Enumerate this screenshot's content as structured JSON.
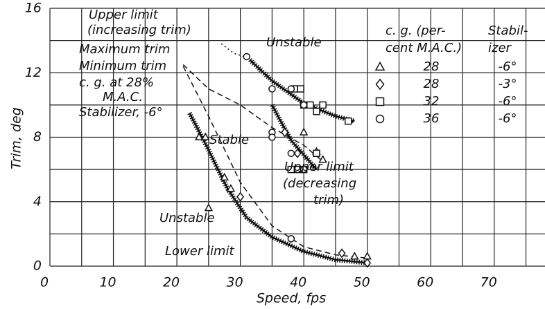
{
  "chart_data": {
    "type": "scatter",
    "xlabel": "Speed, fps",
    "ylabel": "Trim, deg",
    "xlim": [
      0,
      78
    ],
    "ylim": [
      0,
      16
    ],
    "xticks": [
      0,
      10,
      20,
      30,
      40,
      50,
      60,
      70
    ],
    "yticks": [
      0,
      4,
      8,
      12,
      16
    ],
    "xgrid": [
      0,
      5,
      10,
      15,
      20,
      25,
      30,
      35,
      40,
      45,
      50,
      55,
      60,
      65,
      70,
      75
    ],
    "ygrid": [
      0,
      2,
      4,
      6,
      8,
      10,
      12,
      14,
      16
    ],
    "grid": true,
    "color": "#111111",
    "legend_header": [
      "c. g. (per-",
      "cent M.A.C.)",
      "Stabil-",
      "izer"
    ],
    "series": [
      {
        "cg": "28",
        "stabilizer": "-6°",
        "marker": "triangle",
        "x": [
          23.5,
          24.5,
          25,
          27.5,
          28.5,
          40,
          43,
          42,
          48,
          50
        ],
        "y": [
          8,
          8,
          3.6,
          5.5,
          4.8,
          8.3,
          6.6,
          7.1,
          0.6,
          0.6
        ]
      },
      {
        "cg": "28",
        "stabilizer": "-3°",
        "marker": "diamond",
        "x": [
          30,
          37,
          39,
          46,
          50
        ],
        "y": [
          4.3,
          8.3,
          7,
          0.8,
          0.2
        ]
      },
      {
        "cg": "32",
        "stabilizer": "-6°",
        "marker": "square",
        "x": [
          38.5,
          39.5,
          40,
          41,
          42,
          43,
          47,
          38,
          39,
          40,
          42
        ],
        "y": [
          11,
          11,
          10,
          10,
          9.6,
          10,
          9,
          6,
          6,
          6,
          7
        ]
      },
      {
        "cg": "36",
        "stabilizer": "-6°",
        "marker": "circle",
        "x": [
          31,
          35,
          35,
          35,
          38,
          38,
          40,
          39,
          38,
          40
        ],
        "y": [
          13,
          11,
          8.3,
          8,
          11,
          7,
          10,
          6,
          1.7,
          6
        ]
      }
    ],
    "lines": [
      {
        "style": "hatched",
        "x": [
          31.5,
          35,
          40,
          45,
          48
        ],
        "y": [
          12.8,
          11.5,
          10.1,
          9.3,
          9
        ]
      },
      {
        "style": "hatched",
        "x": [
          35,
          38,
          42
        ],
        "y": [
          10,
          7.8,
          6
        ]
      },
      {
        "style": "hatched",
        "x": [
          22,
          25,
          28,
          31,
          35,
          40,
          45,
          50
        ],
        "y": [
          9.5,
          7.2,
          4.8,
          3,
          1.8,
          0.9,
          0.4,
          0.2
        ]
      },
      {
        "style": "dashed",
        "x": [
          21,
          25,
          30,
          35,
          40,
          45,
          50
        ],
        "y": [
          12.4,
          9.3,
          5.2,
          2.5,
          1.2,
          0.7,
          0.5
        ]
      },
      {
        "style": "dashed",
        "x": [
          21,
          25,
          30,
          35,
          40,
          43
        ],
        "y": [
          12.5,
          11,
          10,
          8.6,
          7.5,
          6.5
        ]
      },
      {
        "style": "dotted",
        "x": [
          27,
          29,
          31.5
        ],
        "y": [
          13.8,
          13.2,
          12.9
        ]
      }
    ],
    "annotations": [
      "Upper limit",
      "(increasing trim)",
      "Maximum trim",
      "Minimum trim",
      "c. g. at 28%",
      "M.A.C.",
      "Stabilizer, -6°",
      "Unstable",
      "Stable",
      "Upper limit",
      "(decreasing",
      "trim)",
      "Unstable",
      "Lower limit"
    ]
  }
}
